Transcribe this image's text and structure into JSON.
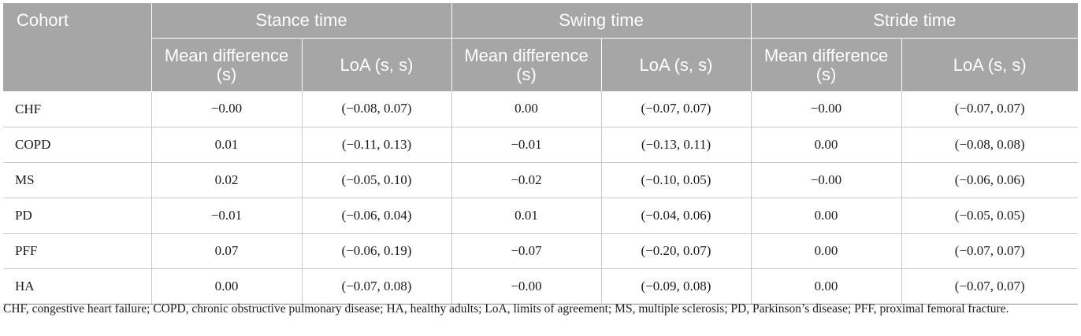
{
  "table": {
    "header": {
      "cohort": "Cohort",
      "groups": [
        "Stance time",
        "Swing time",
        "Stride time"
      ],
      "sub": [
        "Mean difference (s)",
        "LoA (s, s)"
      ]
    },
    "rows": [
      {
        "cohort": "CHF",
        "values": [
          "−0.00",
          "(−0.08, 0.07)",
          "0.00",
          "(−0.07, 0.07)",
          "−0.00",
          "(−0.07, 0.07)"
        ]
      },
      {
        "cohort": "COPD",
        "values": [
          "0.01",
          "(−0.11, 0.13)",
          "−0.01",
          "(−0.13, 0.11)",
          "0.00",
          "(−0.08, 0.08)"
        ]
      },
      {
        "cohort": "MS",
        "values": [
          "0.02",
          "(−0.05, 0.10)",
          "−0.02",
          "(−0.10, 0.05)",
          "−0.00",
          "(−0.06, 0.06)"
        ]
      },
      {
        "cohort": "PD",
        "values": [
          "−0.01",
          "(−0.06, 0.04)",
          "0.01",
          "(−0.04, 0.06)",
          "0.00",
          "(−0.05, 0.05)"
        ]
      },
      {
        "cohort": "PFF",
        "values": [
          "0.07",
          "(−0.06, 0.19)",
          "−0.07",
          "(−0.20, 0.07)",
          "0.00",
          "(−0.07, 0.07)"
        ]
      },
      {
        "cohort": "HA",
        "values": [
          "0.00",
          "(−0.07, 0.08)",
          "−0.00",
          "(−0.09, 0.08)",
          "0.00",
          "(−0.07, 0.07)"
        ]
      }
    ]
  },
  "footnote": "CHF, congestive heart failure; COPD, chronic obstructive pulmonary disease; HA, healthy adults; LoA, limits of agreement; MS, multiple sclerosis; PD, Parkinson’s disease; PFF, proximal femoral fracture."
}
